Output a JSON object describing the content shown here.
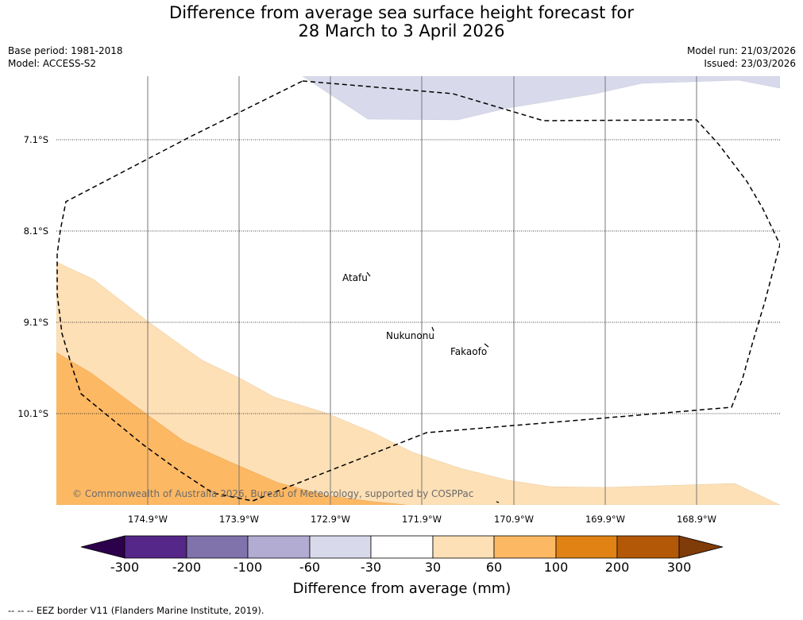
{
  "title": {
    "line1": "Difference from average sea surface height forecast for",
    "line2": "28 March to 3 April 2026"
  },
  "meta": {
    "base_period": "Base period: 1981-2018",
    "model": "Model: ACCESS-S2",
    "model_run": "Model run: 21/03/2026",
    "issued": "Issued: 23/03/2026"
  },
  "map": {
    "lat_labels": [
      "7.1°S",
      "8.1°S",
      "9.1°S",
      "10.1°S"
    ],
    "lon_labels": [
      "174.9°W",
      "173.9°W",
      "172.9°W",
      "171.9°W",
      "170.9°W",
      "169.9°W",
      "168.9°W"
    ],
    "places": [
      "Atafu",
      "Nukunonu",
      "Fakaofo"
    ],
    "copyright": "© Commonwealth of Australia 2026, Bureau of Meteorology, supported by COSPPac",
    "anomaly_regions": [
      {
        "range_mm": "-60 to -30",
        "location": "north"
      },
      {
        "range_mm": "30 to 60",
        "location": "southwest band"
      },
      {
        "range_mm": "60 to 100",
        "location": "southwest corner"
      }
    ]
  },
  "colorbar": {
    "title": "Difference from average (mm)",
    "ticks": [
      "-300",
      "-200",
      "-100",
      "-60",
      "-30",
      "30",
      "60",
      "100",
      "200",
      "300"
    ],
    "colors": [
      "#2d004b",
      "#542788",
      "#8073ac",
      "#b2abd2",
      "#d8daeb",
      "#ffffff",
      "#fee0b6",
      "#fdb863",
      "#e08214",
      "#b35806",
      "#7f3b08"
    ]
  },
  "footnote": "--  --  -- EEZ border V11 (Flanders Marine Institute, 2019)."
}
